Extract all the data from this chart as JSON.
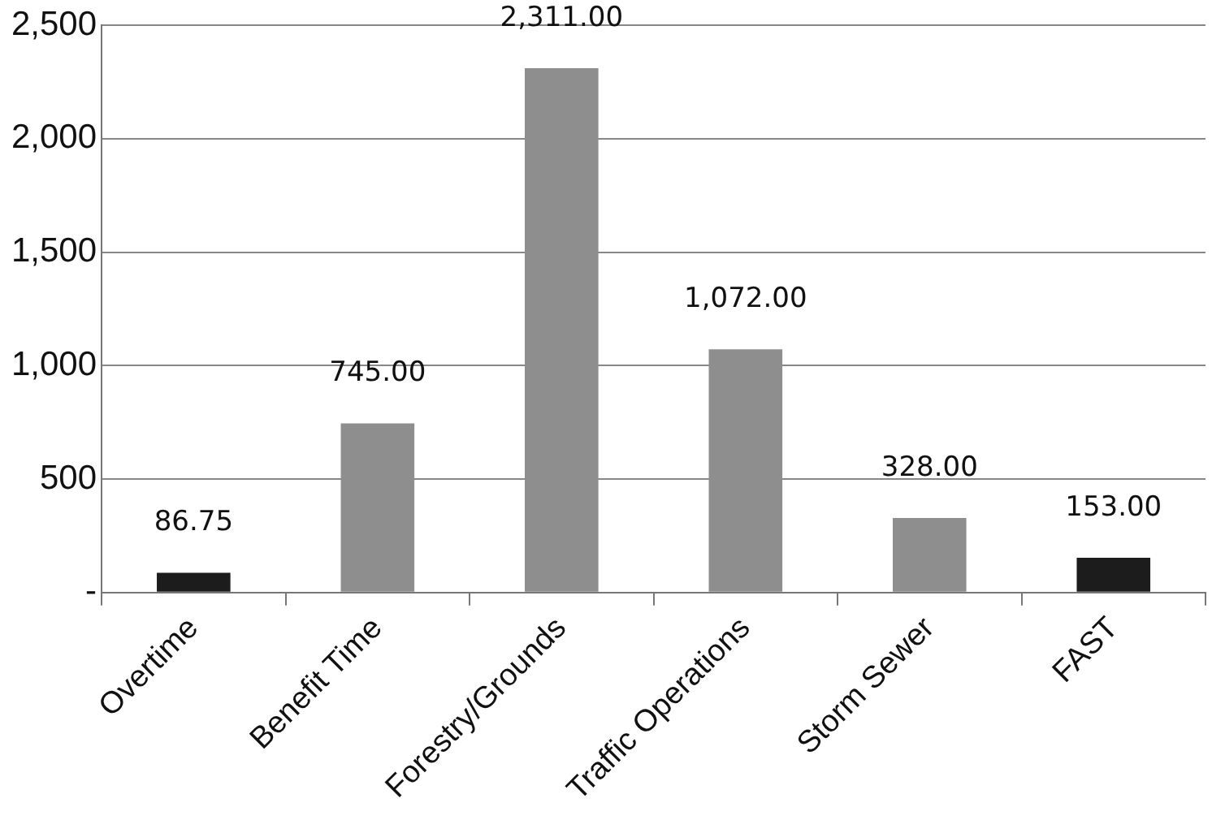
{
  "chart_data": {
    "type": "bar",
    "categories": [
      "Overtime",
      "Benefit Time",
      "Forestry/Grounds",
      "Traffic Operations",
      "Storm Sewer",
      "FAST"
    ],
    "values": [
      86.75,
      745,
      2311,
      1072,
      328,
      153
    ],
    "colors": [
      "#1c1c1c",
      "#8e8e8e",
      "#8e8e8e",
      "#8e8e8e",
      "#8e8e8e",
      "#1c1c1c"
    ],
    "value_labels": [
      "86.75",
      "745.00",
      "2,311.00",
      "1,072.00",
      "328.00",
      "153.00"
    ],
    "ylim": [
      0,
      2500
    ],
    "yticks": [
      {
        "value": 0,
        "label": "-"
      },
      500,
      {
        "value": 1000,
        "label": "1,000"
      },
      {
        "value": 1500,
        "label": "1,500"
      },
      {
        "value": 2000,
        "label": "2,000"
      },
      {
        "value": 2500,
        "label": "2,500"
      }
    ],
    "grid": "y",
    "legend": false
  }
}
